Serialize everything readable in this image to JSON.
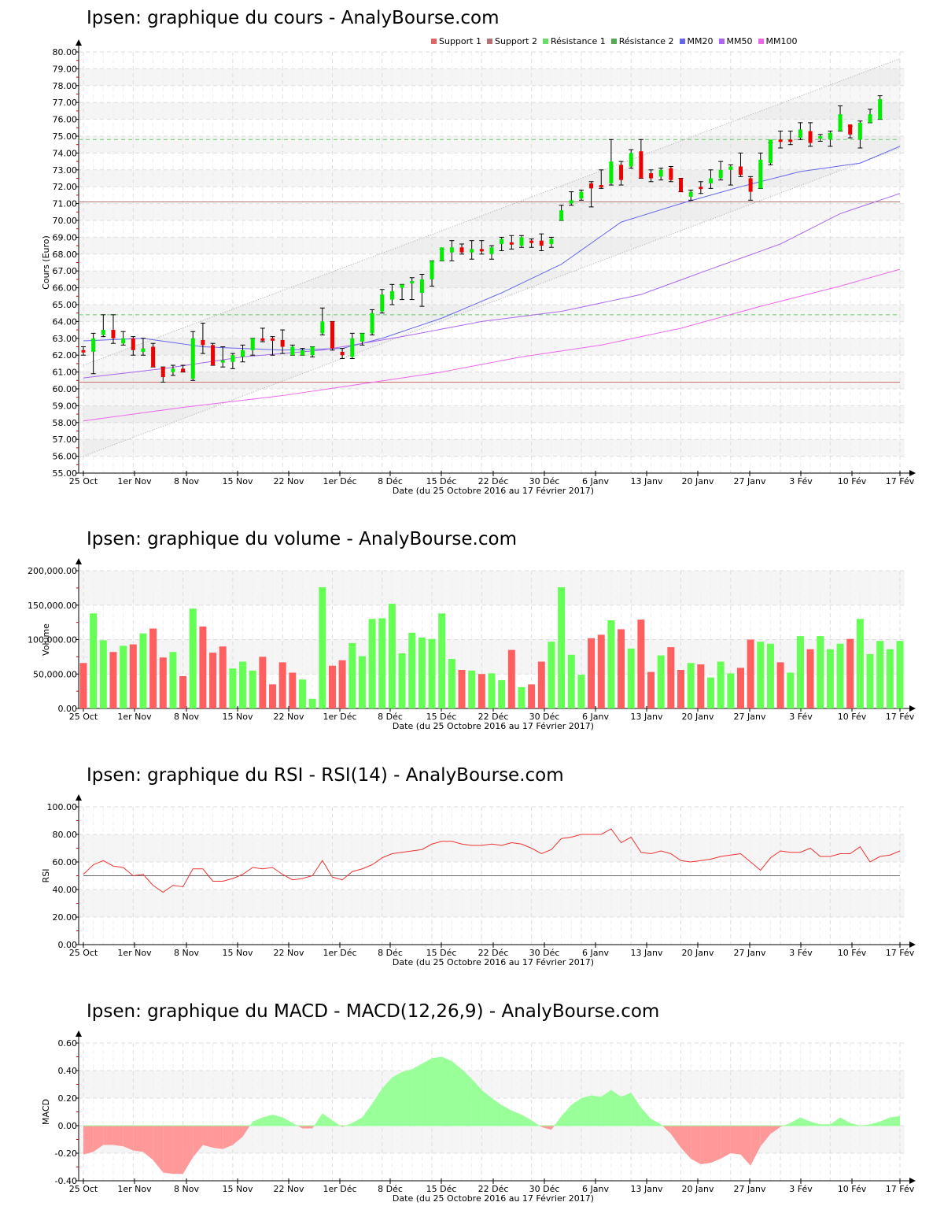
{
  "charts": {
    "price": {
      "title": "Ipsen: graphique du cours - AnalyBourse.com",
      "ylabel": "Cours (Euro)",
      "xlabel": "Date (du 25 Octobre 2016 au 17 Février 2017)",
      "legend": [
        {
          "label": "Support 1",
          "color": "#e06666"
        },
        {
          "label": "Support 2",
          "color": "#b87070"
        },
        {
          "label": "Résistance 1",
          "color": "#66dd66"
        },
        {
          "label": "Résistance 2",
          "color": "#55aa55"
        },
        {
          "label": "MM20",
          "color": "#6666ee"
        },
        {
          "label": "MM50",
          "color": "#aa66ee"
        },
        {
          "label": "MM100",
          "color": "#ee66ee"
        }
      ],
      "yticks": [
        "80.00",
        "79.00",
        "78.00",
        "77.00",
        "76.00",
        "75.00",
        "74.00",
        "73.00",
        "72.00",
        "71.00",
        "70.00",
        "69.00",
        "68.00",
        "67.00",
        "66.00",
        "65.00",
        "64.00",
        "63.00",
        "62.00",
        "61.00",
        "60.00",
        "59.00",
        "58.00",
        "57.00",
        "56.00",
        "55.00"
      ]
    },
    "volume": {
      "title": "Ipsen: graphique du volume - AnalyBourse.com",
      "ylabel": "Volume",
      "xlabel": "Date (du 25 Octobre 2016 au 17 Février 2017)",
      "yticks": [
        "200,000.00",
        "150,000.00",
        "100,000.00",
        "50,000.00",
        "0.00"
      ]
    },
    "rsi": {
      "title": "Ipsen: graphique du RSI - RSI(14) - AnalyBourse.com",
      "ylabel": "RSI",
      "xlabel": "Date (du 25 Octobre 2016 au 17 Février 2017)",
      "yticks": [
        "100.00",
        "80.00",
        "60.00",
        "40.00",
        "20.00",
        "0.00"
      ]
    },
    "macd": {
      "title": "Ipsen: graphique du MACD - MACD(12,26,9) - AnalyBourse.com",
      "ylabel": "MACD",
      "xlabel": "Date (du 25 Octobre 2016 au 17 Février 2017)",
      "yticks": [
        "0.60",
        "0.40",
        "0.20",
        "0.00",
        "-0.20",
        "-0.40"
      ]
    }
  },
  "xticks": [
    "25 Oct",
    "1er Nov",
    "8 Nov",
    "15 Nov",
    "22 Nov",
    "1er Déc",
    "8 Déc",
    "15 Déc",
    "22 Déc",
    "30 Déc",
    "6 Janv",
    "13 Janv",
    "20 Janv",
    "27 Janv",
    "3 Fév",
    "10 Fév",
    "17 Fév"
  ],
  "chart_data": [
    {
      "type": "candlestick",
      "title": "Ipsen: graphique du cours - AnalyBourse.com",
      "xlabel": "Date (du 25 Octobre 2016 au 17 Février 2017)",
      "ylabel": "Cours (Euro)",
      "ylim": [
        55,
        80
      ],
      "x_tick_labels": [
        "25 Oct",
        "1er Nov",
        "8 Nov",
        "15 Nov",
        "22 Nov",
        "1er Déc",
        "8 Déc",
        "15 Déc",
        "22 Déc",
        "30 Déc",
        "6 Janv",
        "13 Janv",
        "20 Janv",
        "27 Janv",
        "3 Fév",
        "10 Fév",
        "17 Fév"
      ],
      "horizontal_lines": {
        "support_1": 60.4,
        "support_2": 71.1,
        "resistance_1": 64.4,
        "resistance_2": 74.8
      },
      "trend_channel": {
        "lower_start": 56.0,
        "lower_end": 74.3,
        "upper_start": 61.4,
        "upper_end": 79.6
      },
      "candles_ohlc": [
        [
          62.3,
          62.5,
          62.0,
          62.2
        ],
        [
          62.2,
          63.3,
          60.9,
          63.0
        ],
        [
          63.2,
          64.4,
          63.1,
          63.5
        ],
        [
          63.5,
          64.4,
          62.7,
          63.0
        ],
        [
          62.7,
          63.4,
          62.6,
          63.0
        ],
        [
          63.0,
          63.1,
          62.0,
          62.3
        ],
        [
          62.2,
          63.0,
          62.0,
          62.4
        ],
        [
          62.5,
          62.7,
          61.3,
          61.3
        ],
        [
          61.3,
          61.3,
          60.4,
          60.7
        ],
        [
          61.0,
          61.4,
          60.8,
          61.2
        ],
        [
          61.2,
          61.4,
          61.0,
          61.0
        ],
        [
          60.6,
          63.4,
          60.5,
          63.0
        ],
        [
          62.9,
          63.9,
          62.1,
          62.6
        ],
        [
          62.6,
          62.7,
          61.4,
          61.4
        ],
        [
          61.6,
          62.5,
          61.3,
          61.7
        ],
        [
          61.6,
          62.1,
          61.2,
          62.0
        ],
        [
          61.9,
          62.6,
          61.6,
          62.3
        ],
        [
          62.3,
          63.0,
          62.0,
          63.0
        ],
        [
          63.0,
          63.6,
          62.8,
          62.9
        ],
        [
          63.0,
          63.1,
          62.0,
          62.9
        ],
        [
          62.9,
          63.5,
          62.1,
          62.5
        ],
        [
          62.5,
          62.6,
          62.0,
          62.0
        ],
        [
          62.0,
          62.4,
          62.0,
          62.3
        ],
        [
          62.0,
          62.5,
          61.9,
          62.5
        ],
        [
          63.3,
          64.8,
          63.2,
          64.0
        ],
        [
          64.0,
          64.0,
          62.3,
          62.4
        ],
        [
          62.2,
          62.4,
          61.8,
          62.0
        ],
        [
          61.9,
          63.3,
          61.8,
          63.0
        ],
        [
          62.8,
          63.3,
          62.6,
          63.3
        ],
        [
          63.3,
          64.7,
          63.2,
          64.5
        ],
        [
          64.6,
          65.9,
          64.5,
          65.6
        ],
        [
          65.3,
          66.2,
          65.0,
          65.8
        ],
        [
          66.0,
          66.2,
          65.3,
          66.2
        ],
        [
          66.3,
          66.6,
          65.3,
          66.4
        ],
        [
          65.7,
          66.8,
          64.9,
          66.5
        ],
        [
          66.5,
          67.6,
          66.1,
          67.6
        ],
        [
          67.6,
          68.3,
          67.6,
          68.4
        ],
        [
          68.1,
          68.8,
          67.6,
          68.4
        ],
        [
          68.4,
          68.6,
          68.0,
          68.1
        ],
        [
          68.1,
          68.8,
          67.7,
          68.3
        ],
        [
          68.3,
          68.8,
          68.0,
          68.2
        ],
        [
          68.0,
          68.5,
          67.7,
          68.4
        ],
        [
          68.6,
          69.0,
          68.2,
          68.9
        ],
        [
          68.7,
          69.1,
          68.3,
          68.6
        ],
        [
          68.5,
          69.1,
          68.4,
          69.0
        ],
        [
          68.8,
          68.9,
          68.4,
          68.7
        ],
        [
          68.5,
          69.2,
          68.2,
          68.8
        ],
        [
          68.6,
          69.0,
          68.4,
          68.9
        ],
        [
          70.0,
          70.9,
          70.0,
          70.6
        ],
        [
          71.0,
          71.7,
          70.9,
          71.2
        ],
        [
          71.3,
          71.8,
          71.2,
          71.7
        ],
        [
          72.2,
          72.3,
          70.8,
          71.9
        ],
        [
          72.1,
          73.0,
          71.9,
          72.1
        ],
        [
          72.2,
          74.8,
          72.1,
          73.5
        ],
        [
          73.3,
          73.5,
          72.1,
          72.4
        ],
        [
          73.2,
          74.2,
          73.1,
          74.0
        ],
        [
          74.1,
          74.8,
          72.5,
          72.5
        ],
        [
          72.8,
          73.0,
          72.3,
          72.5
        ],
        [
          72.6,
          73.1,
          72.4,
          73.0
        ],
        [
          73.1,
          73.2,
          72.3,
          72.4
        ],
        [
          72.5,
          72.5,
          71.7,
          71.7
        ],
        [
          71.4,
          71.8,
          71.2,
          71.7
        ],
        [
          72.0,
          72.3,
          71.6,
          71.9
        ],
        [
          72.2,
          73.0,
          71.9,
          72.5
        ],
        [
          72.5,
          73.5,
          72.4,
          73.0
        ],
        [
          73.0,
          73.3,
          72.1,
          73.2
        ],
        [
          73.2,
          74.0,
          72.6,
          72.7
        ],
        [
          72.5,
          72.6,
          71.2,
          71.7
        ],
        [
          71.9,
          74.0,
          71.9,
          73.6
        ],
        [
          73.4,
          74.6,
          73.3,
          74.8
        ],
        [
          74.7,
          75.3,
          74.3,
          74.8
        ],
        [
          74.7,
          75.3,
          74.5,
          74.8
        ],
        [
          74.9,
          75.8,
          74.8,
          75.4
        ],
        [
          75.3,
          75.8,
          74.4,
          74.6
        ],
        [
          74.9,
          75.1,
          74.7,
          75.0
        ],
        [
          74.8,
          75.3,
          74.4,
          75.2
        ],
        [
          75.3,
          76.8,
          75.3,
          76.3
        ],
        [
          75.7,
          75.6,
          74.9,
          75.1
        ],
        [
          74.8,
          75.9,
          74.3,
          75.8
        ],
        [
          75.8,
          76.6,
          75.8,
          76.3
        ],
        [
          76.0,
          77.4,
          76.0,
          77.2
        ]
      ],
      "candle_colors": [
        "red",
        "green",
        "green",
        "red",
        "green",
        "red",
        "green",
        "red",
        "red",
        "green",
        "red",
        "green",
        "red",
        "red",
        "green",
        "green",
        "green",
        "green",
        "red",
        "red",
        "red",
        "green",
        "green",
        "green",
        "green",
        "red",
        "red",
        "green",
        "green",
        "green",
        "green",
        "green",
        "green",
        "green",
        "green",
        "green",
        "green",
        "green",
        "red",
        "green",
        "red",
        "green",
        "green",
        "red",
        "green",
        "red",
        "red",
        "green",
        "green",
        "green",
        "green",
        "red",
        "red",
        "green",
        "red",
        "green",
        "red",
        "red",
        "green",
        "red",
        "red",
        "green",
        "red",
        "green",
        "green",
        "green",
        "red",
        "red",
        "green",
        "green",
        "red",
        "red",
        "green",
        "red",
        "green",
        "green",
        "green",
        "red",
        "green",
        "green",
        "green",
        "red",
        "green"
      ],
      "series": [
        {
          "name": "MM20",
          "points": [
            [
              0,
              62.85
            ],
            [
              6,
              63.0
            ],
            [
              12,
              62.5
            ],
            [
              20,
              62.3
            ],
            [
              26,
              62.4
            ],
            [
              30,
              63.0
            ],
            [
              36,
              64.2
            ],
            [
              42,
              65.7
            ],
            [
              48,
              67.4
            ],
            [
              54,
              69.9
            ],
            [
              60,
              71.0
            ],
            [
              66,
              72.0
            ],
            [
              72,
              72.9
            ],
            [
              78,
              73.4
            ],
            [
              82,
              74.4
            ]
          ]
        },
        {
          "name": "MM50",
          "points": [
            [
              0,
              60.65
            ],
            [
              8,
              61.2
            ],
            [
              16,
              61.9
            ],
            [
              24,
              62.3
            ],
            [
              32,
              63.1
            ],
            [
              40,
              64.0
            ],
            [
              48,
              64.6
            ],
            [
              56,
              65.6
            ],
            [
              62,
              66.9
            ],
            [
              70,
              68.6
            ],
            [
              76,
              70.4
            ],
            [
              82,
              71.6
            ]
          ]
        },
        {
          "name": "MM100",
          "points": [
            [
              0,
              58.1
            ],
            [
              10,
              58.9
            ],
            [
              20,
              59.6
            ],
            [
              28,
              60.3
            ],
            [
              36,
              61.0
            ],
            [
              44,
              61.9
            ],
            [
              52,
              62.6
            ],
            [
              60,
              63.6
            ],
            [
              68,
              64.9
            ],
            [
              76,
              66.1
            ],
            [
              82,
              67.1
            ]
          ]
        }
      ]
    },
    {
      "type": "bar",
      "title": "Ipsen: graphique du volume - AnalyBourse.com",
      "ylabel": "Volume",
      "ylim": [
        0,
        200000
      ],
      "values": [
        66000,
        138000,
        99000,
        82000,
        91000,
        93000,
        109000,
        116000,
        74000,
        82000,
        47000,
        145000,
        119000,
        81000,
        90000,
        58000,
        68000,
        55000,
        75000,
        35000,
        67000,
        52000,
        42000,
        14000,
        176000,
        62000,
        70000,
        95000,
        76000,
        130000,
        131000,
        152000,
        80000,
        110000,
        103000,
        101000,
        138000,
        72000,
        56000,
        55000,
        50000,
        51000,
        41000,
        85000,
        31000,
        35000,
        68000,
        97000,
        176000,
        78000,
        49000,
        102000,
        107000,
        128000,
        115000,
        87000,
        129000,
        53000,
        77000,
        89000,
        56000,
        66000,
        64000,
        45000,
        68000,
        51000,
        59000,
        100000,
        97000,
        94000,
        67000,
        52000,
        105000,
        86000,
        105000,
        86000,
        94000,
        101000,
        130000,
        79000,
        98000,
        86000,
        98000
      ],
      "colors": [
        "red",
        "green",
        "green",
        "red",
        "green",
        "red",
        "green",
        "red",
        "red",
        "green",
        "red",
        "green",
        "red",
        "red",
        "red",
        "green",
        "green",
        "green",
        "red",
        "red",
        "red",
        "red",
        "green",
        "green",
        "green",
        "red",
        "red",
        "green",
        "green",
        "green",
        "green",
        "green",
        "green",
        "green",
        "green",
        "green",
        "green",
        "green",
        "red",
        "green",
        "red",
        "green",
        "green",
        "red",
        "green",
        "red",
        "red",
        "green",
        "green",
        "green",
        "green",
        "red",
        "red",
        "green",
        "red",
        "green",
        "red",
        "red",
        "green",
        "red",
        "red",
        "green",
        "red",
        "green",
        "green",
        "green",
        "red",
        "red",
        "green",
        "green",
        "red",
        "green",
        "green",
        "red",
        "green",
        "green",
        "green",
        "red",
        "green",
        "green",
        "green",
        "green",
        "green"
      ]
    },
    {
      "type": "line",
      "title": "Ipsen: graphique du RSI - RSI(14) - AnalyBourse.com",
      "ylabel": "RSI",
      "ylim": [
        0,
        100
      ],
      "reference_line": 50,
      "values": [
        51,
        58,
        61,
        57,
        56,
        50,
        51,
        43,
        38,
        43,
        42,
        55,
        55,
        46,
        46,
        48,
        51,
        56,
        55,
        56,
        51,
        47,
        48,
        50,
        61,
        49,
        47,
        53,
        55,
        58,
        63,
        66,
        67,
        68,
        69,
        73,
        75,
        75,
        73,
        72,
        72,
        73,
        72,
        74,
        73,
        70,
        66,
        69,
        77,
        78,
        80,
        80,
        80,
        84,
        74,
        78,
        67,
        66,
        68,
        66,
        61,
        60,
        61,
        62,
        64,
        65,
        66,
        60,
        54,
        63,
        68,
        67,
        67,
        70,
        64,
        64,
        66,
        66,
        71,
        60,
        64,
        65,
        68
      ]
    },
    {
      "type": "area",
      "title": "Ipsen: graphique du MACD - MACD(12,26,9) - AnalyBourse.com",
      "ylabel": "MACD",
      "ylim": [
        -0.4,
        0.6
      ],
      "values": [
        -0.21,
        -0.19,
        -0.14,
        -0.14,
        -0.15,
        -0.18,
        -0.19,
        -0.25,
        -0.34,
        -0.35,
        -0.35,
        -0.23,
        -0.14,
        -0.16,
        -0.17,
        -0.14,
        -0.08,
        0.03,
        0.06,
        0.08,
        0.06,
        0.02,
        -0.02,
        -0.02,
        0.09,
        0.04,
        -0.01,
        0.02,
        0.06,
        0.16,
        0.27,
        0.35,
        0.39,
        0.41,
        0.45,
        0.49,
        0.5,
        0.47,
        0.41,
        0.34,
        0.26,
        0.2,
        0.15,
        0.11,
        0.08,
        0.04,
        -0.01,
        -0.03,
        0.07,
        0.15,
        0.2,
        0.22,
        0.21,
        0.26,
        0.21,
        0.24,
        0.13,
        0.05,
        0.01,
        -0.06,
        -0.16,
        -0.24,
        -0.28,
        -0.27,
        -0.24,
        -0.2,
        -0.21,
        -0.29,
        -0.15,
        -0.06,
        -0.01,
        0.02,
        0.06,
        0.03,
        0.01,
        0.01,
        0.06,
        0.02,
        0.0,
        0.01,
        0.03,
        0.06,
        0.07
      ]
    }
  ]
}
